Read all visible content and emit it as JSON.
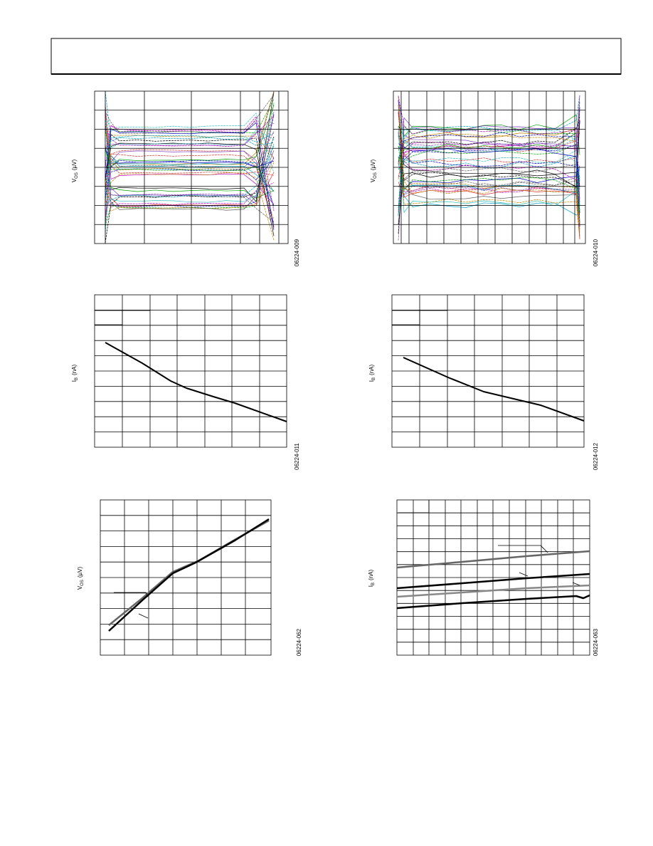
{
  "figures": [
    {
      "y_label": {
        "symbol": "V",
        "subscript": "OS",
        "unit": "(µV)"
      },
      "figure_id": "06224-009"
    },
    {
      "y_label": {
        "symbol": "V",
        "subscript": "OS",
        "unit": "(µV)"
      },
      "figure_id": "06224-010"
    },
    {
      "y_label": {
        "symbol": "I",
        "subscript": "B",
        "unit": "(nA)"
      },
      "figure_id": "06224-011"
    },
    {
      "y_label": {
        "symbol": "I",
        "subscript": "B",
        "unit": "(nA)"
      },
      "figure_id": "06224-012"
    },
    {
      "y_label": {
        "symbol": "V",
        "subscript": "OS",
        "unit": "(µV)"
      },
      "figure_id": "06224-062"
    },
    {
      "y_label": {
        "symbol": "I",
        "subscript": "B",
        "unit": "(nA)"
      },
      "figure_id": "06224-063"
    }
  ]
}
